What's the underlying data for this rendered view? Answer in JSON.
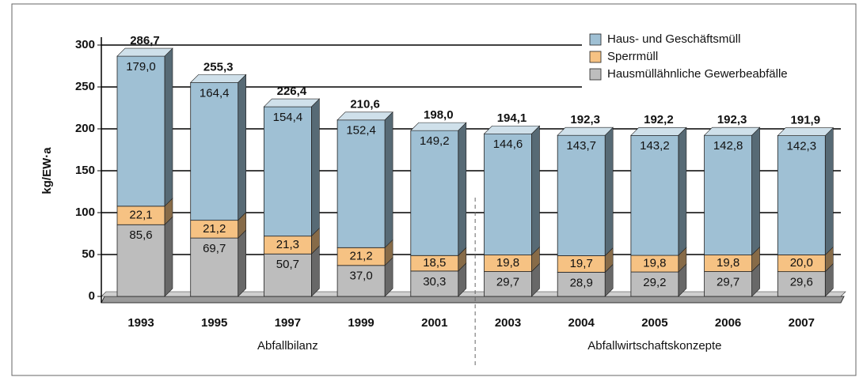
{
  "chart_data": {
    "type": "bar",
    "stacked": true,
    "ylabel": "kg/EW·a",
    "categories": [
      "1993",
      "1995",
      "1997",
      "1999",
      "2001",
      "2003",
      "2004",
      "2005",
      "2006",
      "2007"
    ],
    "groups": [
      {
        "label": "Abfallbilanz",
        "from": 0,
        "to": 4
      },
      {
        "label": "Abfallwirtschaftskonzepte",
        "from": 5,
        "to": 9
      }
    ],
    "series": [
      {
        "name": "Hausmüllähnliche Gewerbeabfälle",
        "color": "#bdbdbd",
        "values": [
          85.6,
          69.7,
          50.7,
          37.0,
          30.3,
          29.7,
          28.9,
          29.2,
          29.7,
          29.6
        ],
        "value_labels": [
          "85,6",
          "69,7",
          "50,7",
          "37,0",
          "30,3",
          "29,7",
          "28,9",
          "29,2",
          "29,7",
          "29,6"
        ]
      },
      {
        "name": "Sperrmüll",
        "color": "#f6c283",
        "values": [
          22.1,
          21.2,
          21.3,
          21.2,
          18.5,
          19.8,
          19.7,
          19.8,
          19.8,
          20.0
        ],
        "value_labels": [
          "22,1",
          "21,2",
          "21,3",
          "21,2",
          "18,5",
          "19,8",
          "19,7",
          "19,8",
          "19,8",
          "20,0"
        ]
      },
      {
        "name": "Haus- und Geschäftsmüll",
        "color": "#9fc0d4",
        "values": [
          179.0,
          164.4,
          154.4,
          152.4,
          149.2,
          144.6,
          143.7,
          143.2,
          142.8,
          142.3
        ],
        "value_labels": [
          "179,0",
          "164,4",
          "154,4",
          "152,4",
          "149,2",
          "144,6",
          "143,7",
          "143,2",
          "142,8",
          "142,3"
        ]
      }
    ],
    "totals": [
      286.7,
      255.3,
      226.4,
      210.6,
      198.0,
      194.1,
      192.3,
      192.2,
      192.3,
      191.9
    ],
    "total_labels": [
      "286,7",
      "255,3",
      "226,4",
      "210,6",
      "198,0",
      "194,1",
      "192,3",
      "192,2",
      "192,3",
      "191,9"
    ],
    "ylim": [
      0,
      300
    ],
    "yticks": [
      0,
      50,
      100,
      150,
      200,
      250,
      300
    ],
    "grid": true,
    "legend": "upper right"
  }
}
